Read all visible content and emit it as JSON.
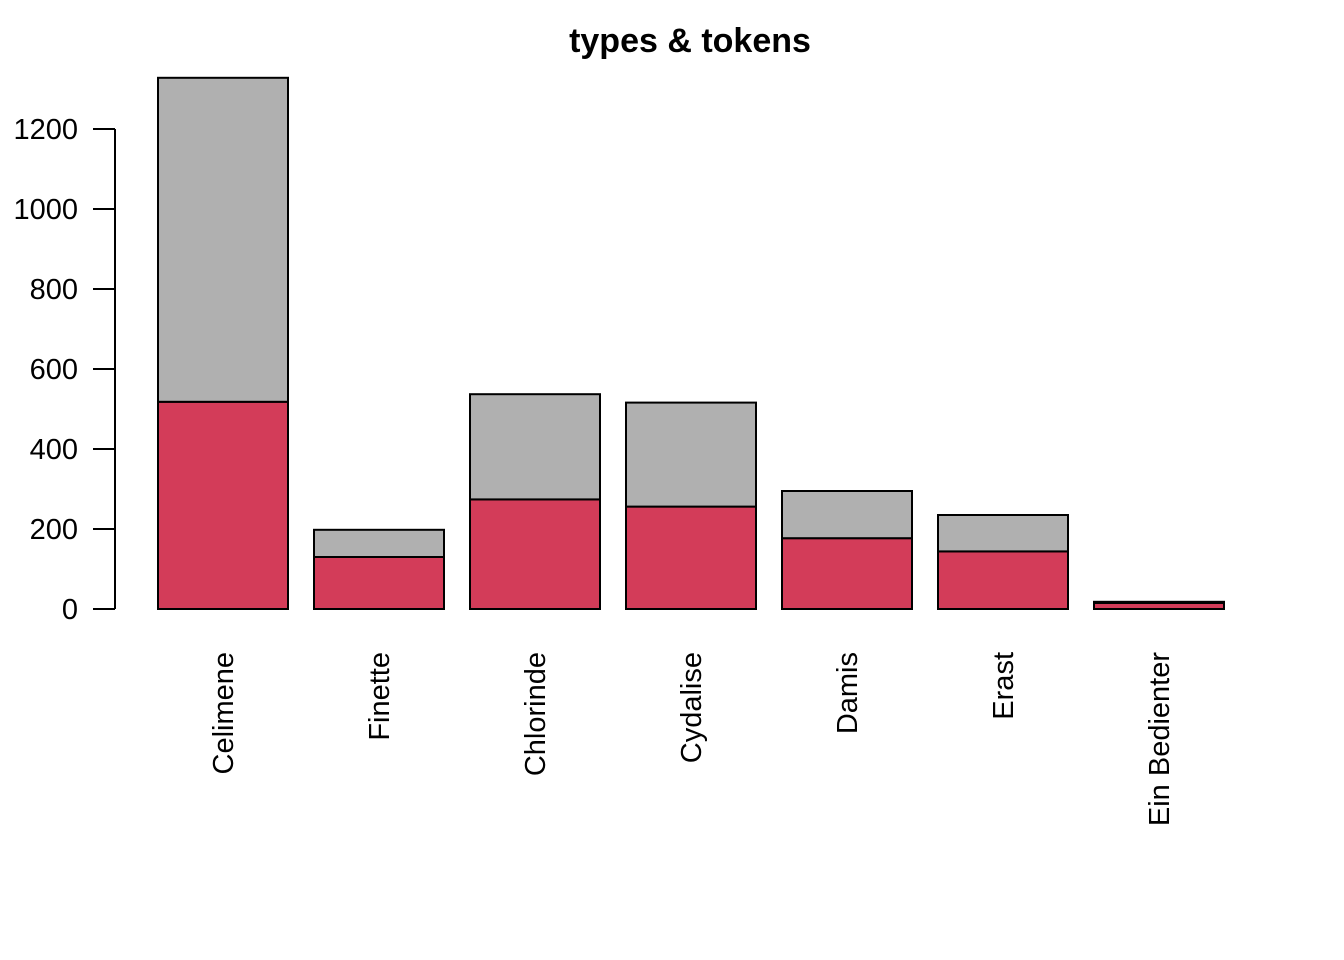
{
  "chart_data": {
    "type": "bar",
    "stacked": true,
    "title": "types & tokens",
    "xlabel": "",
    "ylabel": "",
    "ylim": [
      0,
      1330
    ],
    "yticks": [
      0,
      200,
      400,
      600,
      800,
      1000,
      1200
    ],
    "ytick_labels": [
      "0",
      "200",
      "400",
      "600",
      "800",
      "1000",
      "1200"
    ],
    "categories": [
      "Celimene",
      "Finette",
      "Chlorinde",
      "Cydalise",
      "Damis",
      "Erast",
      "Ein Bedienter"
    ],
    "category_label_rotation": "vertical",
    "series": [
      {
        "values": [
          518,
          130,
          274,
          256,
          177,
          144,
          15
        ],
        "color": "#D33C59"
      },
      {
        "values": [
          810,
          68,
          263,
          260,
          118,
          91,
          3
        ],
        "color": "#B0B0B0"
      }
    ],
    "totals": [
      1328,
      198,
      537,
      516,
      295,
      235,
      18
    ],
    "grid": false,
    "legend": "none"
  }
}
